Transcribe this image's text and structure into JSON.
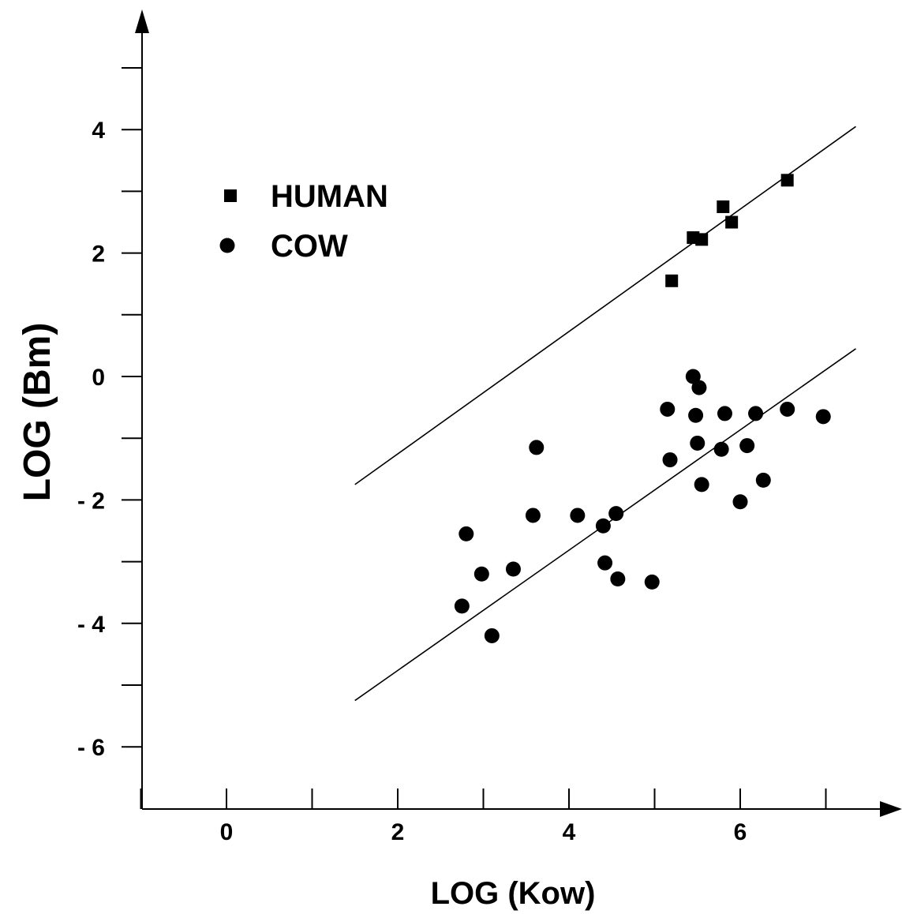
{
  "chart_data": {
    "type": "scatter",
    "xlabel": "LOG (Kow)",
    "ylabel": "LOG (Bm)",
    "xlim": [
      -1,
      7.8
    ],
    "ylim": [
      -7,
      6.8
    ],
    "x_ticks": [
      -1,
      0,
      1,
      2,
      3,
      4,
      5,
      6,
      7
    ],
    "x_tick_labels": [
      {
        "value": 0,
        "label": "0"
      },
      {
        "value": 2,
        "label": "2"
      },
      {
        "value": 4,
        "label": "4"
      },
      {
        "value": 6,
        "label": "6"
      }
    ],
    "y_ticks": [
      -6,
      -5,
      -4,
      -3,
      -2,
      -1,
      0,
      1,
      2,
      3,
      4,
      5
    ],
    "y_tick_labels": [
      {
        "value": 4,
        "label": "4"
      },
      {
        "value": 2,
        "label": "2"
      },
      {
        "value": 0,
        "label": "0"
      },
      {
        "value": -2,
        "label": "- 2"
      },
      {
        "value": -4,
        "label": "- 4"
      },
      {
        "value": -6,
        "label": "- 6"
      }
    ],
    "grid": false,
    "legend_position": "top-left",
    "series": [
      {
        "name": "HUMAN",
        "marker": "square",
        "color": "#000000",
        "points": [
          [
            5.2,
            1.55
          ],
          [
            5.45,
            2.25
          ],
          [
            5.55,
            2.22
          ],
          [
            5.8,
            2.75
          ],
          [
            5.9,
            2.5
          ],
          [
            6.55,
            3.18
          ]
        ],
        "fit_line": [
          [
            1.5,
            -1.75
          ],
          [
            7.35,
            4.05
          ]
        ]
      },
      {
        "name": "COW",
        "marker": "circle",
        "color": "#000000",
        "points": [
          [
            2.75,
            -3.72
          ],
          [
            2.8,
            -2.55
          ],
          [
            2.98,
            -3.2
          ],
          [
            3.1,
            -4.2
          ],
          [
            3.35,
            -3.12
          ],
          [
            3.58,
            -2.25
          ],
          [
            3.62,
            -1.15
          ],
          [
            4.1,
            -2.25
          ],
          [
            4.4,
            -2.42
          ],
          [
            4.42,
            -3.02
          ],
          [
            4.55,
            -2.22
          ],
          [
            4.57,
            -3.28
          ],
          [
            4.97,
            -3.33
          ],
          [
            5.15,
            -0.53
          ],
          [
            5.18,
            -1.35
          ],
          [
            5.45,
            0.0
          ],
          [
            5.48,
            -0.63
          ],
          [
            5.5,
            -1.08
          ],
          [
            5.52,
            -0.18
          ],
          [
            5.55,
            -1.75
          ],
          [
            5.78,
            -1.18
          ],
          [
            5.82,
            -0.6
          ],
          [
            6.0,
            -2.03
          ],
          [
            6.08,
            -1.12
          ],
          [
            6.18,
            -0.6
          ],
          [
            6.27,
            -1.68
          ],
          [
            6.55,
            -0.53
          ],
          [
            6.97,
            -0.65
          ]
        ],
        "fit_line": [
          [
            1.5,
            -5.25
          ],
          [
            7.35,
            0.45
          ]
        ]
      }
    ]
  }
}
